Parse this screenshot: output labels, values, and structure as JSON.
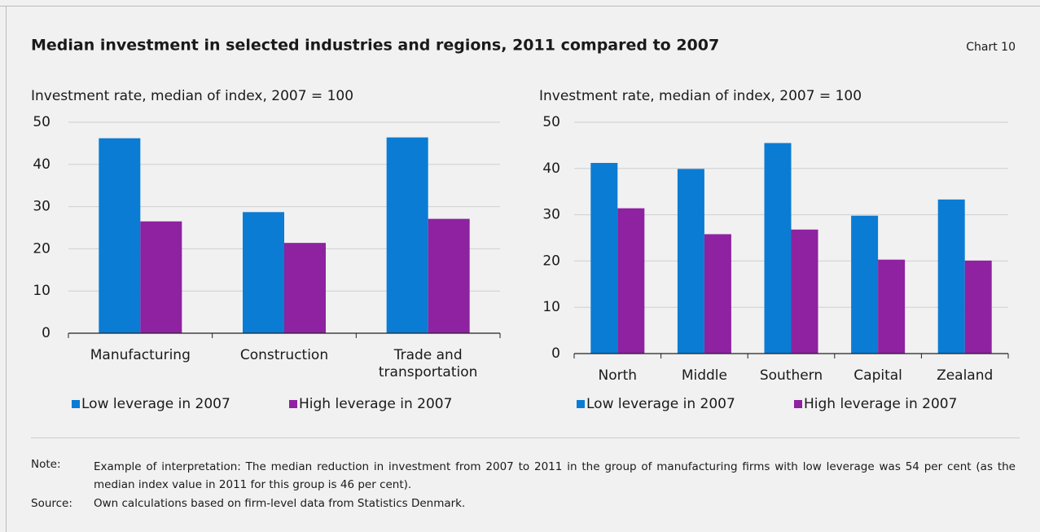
{
  "header": {
    "title": "Median investment in selected industries and regions, 2011 compared to 2007",
    "label": "Chart 10"
  },
  "notes": {
    "note_label": "Note:",
    "note": "Example of interpretation: The median reduction in investment from 2007 to 2011 in the group of manufacturing firms with low leverage was 54 per cent (as the median index value in 2011 for this group is 46 per cent).",
    "source_label": "Source:",
    "source": "Own calculations based on firm-level data from Statistics Denmark."
  },
  "chart_data": [
    {
      "type": "bar",
      "y_label": "Investment rate, median of index, 2007 = 100",
      "categories": [
        "Manufacturing",
        "Construction",
        "Trade and transportation"
      ],
      "series": [
        {
          "name": "Low leverage in 2007",
          "color": "#0a7cd4",
          "values": [
            46.2,
            28.7,
            46.4
          ]
        },
        {
          "name": "High leverage in 2007",
          "color": "#8e22a0",
          "values": [
            26.5,
            21.4,
            27.1
          ]
        }
      ],
      "ylim": [
        0,
        50
      ],
      "yticks": [
        0,
        10,
        20,
        30,
        40,
        50
      ],
      "grid": true
    },
    {
      "type": "bar",
      "y_label": "Investment rate, median of index, 2007 = 100",
      "categories": [
        "North",
        "Middle",
        "Southern",
        "Capital",
        "Zealand"
      ],
      "series": [
        {
          "name": "Low leverage in 2007",
          "color": "#0a7cd4",
          "values": [
            41.2,
            39.9,
            45.5,
            29.8,
            33.3
          ]
        },
        {
          "name": "High leverage in 2007",
          "color": "#8e22a0",
          "values": [
            31.4,
            25.8,
            26.8,
            20.3,
            20.1
          ]
        }
      ],
      "ylim": [
        0,
        50
      ],
      "yticks": [
        0,
        10,
        20,
        30,
        40,
        50
      ],
      "grid": true
    }
  ]
}
